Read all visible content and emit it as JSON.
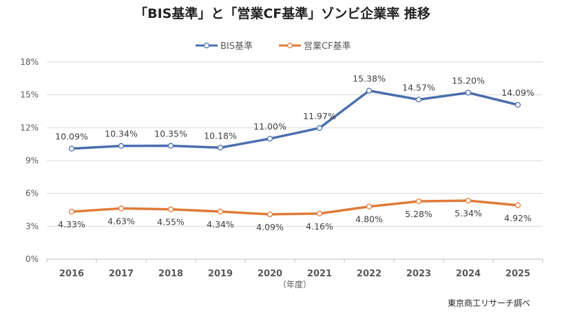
{
  "chart_data": {
    "type": "line",
    "title": "「BIS基準」と「営業CF基準」ゾンビ企業率 推移",
    "xlabel": "（年度）",
    "ylabel": "",
    "categories": [
      "2016",
      "2017",
      "2018",
      "2019",
      "2020",
      "2021",
      "2022",
      "2023",
      "2024",
      "2025"
    ],
    "ylim": [
      0,
      18
    ],
    "yticks": [
      0,
      3,
      6,
      9,
      12,
      15,
      18
    ],
    "ytick_labels": [
      "0%",
      "3%",
      "6%",
      "9%",
      "12%",
      "15%",
      "18%"
    ],
    "grid": true,
    "legend_position": "top-center",
    "series": [
      {
        "name": "BIS基準",
        "color": "#4a6fad",
        "values": [
          10.09,
          10.34,
          10.35,
          10.18,
          11.0,
          11.97,
          15.38,
          14.57,
          15.2,
          14.09
        ],
        "labels": [
          "10.09%",
          "10.34%",
          "10.35%",
          "10.18%",
          "11.00%",
          "11.97%",
          "15.38%",
          "14.57%",
          "15.20%",
          "14.09%"
        ],
        "label_position": "above"
      },
      {
        "name": "営業CF基準",
        "color": "#e07b39",
        "values": [
          4.33,
          4.63,
          4.55,
          4.34,
          4.09,
          4.16,
          4.8,
          5.28,
          5.34,
          4.92
        ],
        "labels": [
          "4.33%",
          "4.63%",
          "4.55%",
          "4.34%",
          "4.09%",
          "4.16%",
          "4.80%",
          "5.28%",
          "5.34%",
          "4.92%"
        ],
        "label_position": "below"
      }
    ],
    "source": "東京商工リサーチ調べ"
  }
}
